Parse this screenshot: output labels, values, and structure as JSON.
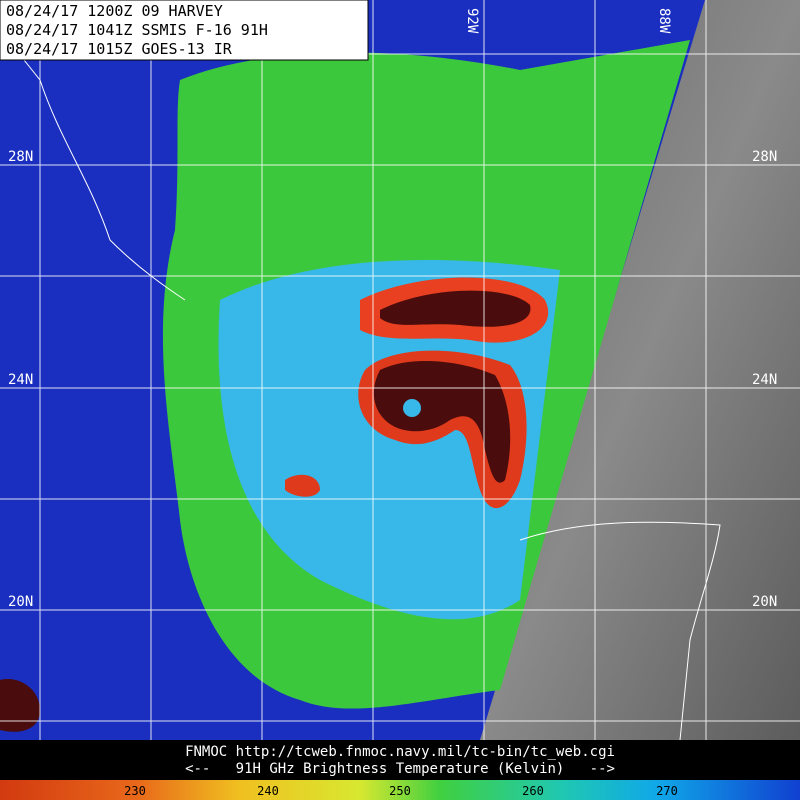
{
  "header": {
    "lines": [
      "08/24/17 1200Z  09 HARVEY",
      "08/24/17 1041Z  SSMIS F-16 91H",
      "08/24/17 1015Z  GOES-13 IR"
    ]
  },
  "latitudes": {
    "left": [
      "28N",
      "24N",
      "20N"
    ],
    "right": [
      "28N",
      "24N",
      "20N"
    ]
  },
  "longitudes": [
    "92W",
    "88W"
  ],
  "footer": {
    "source": "FNMOC  http://tcweb.fnmoc.navy.mil/tc-bin/tc_web.cgi",
    "caption": "<--   91H GHz Brightness Temperature (Kelvin)   -->"
  },
  "colorbar": {
    "labels": [
      "230",
      "240",
      "250",
      "260",
      "270"
    ]
  }
}
